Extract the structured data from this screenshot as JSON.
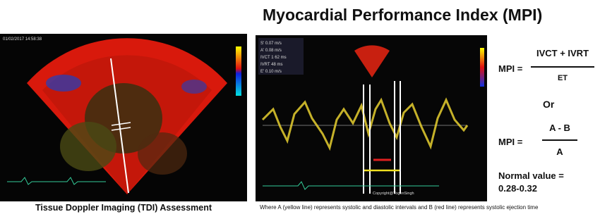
{
  "title": "Myocardial Performance Index (MPI)",
  "left_panel": {
    "timestamp": "01/02/2017 14:58:38",
    "caption": "Tissue Doppler Imaging (TDI) Assessment"
  },
  "right_panel": {
    "measurements": [
      "S'   0.07 m/s",
      "A'   0.08 m/s",
      "IVCT 1 62 ms",
      "IVRT   48 ms",
      "E'   0.10 m/s"
    ],
    "watermark": "Copyright@YogenSingh",
    "caption": "Where A (yellow line) represents systolic and diastolic intervals and B (red line) represents systolic ejection time"
  },
  "formulas": {
    "label_1": "MPI =",
    "numerator_1": "IVCT + IVRT",
    "denominator_1": "ET",
    "or": "Or",
    "label_2": "MPI =",
    "numerator_2": "A - B",
    "denominator_2": "A",
    "normal": "Normal value =",
    "normal_range": "0.28-0.32"
  }
}
